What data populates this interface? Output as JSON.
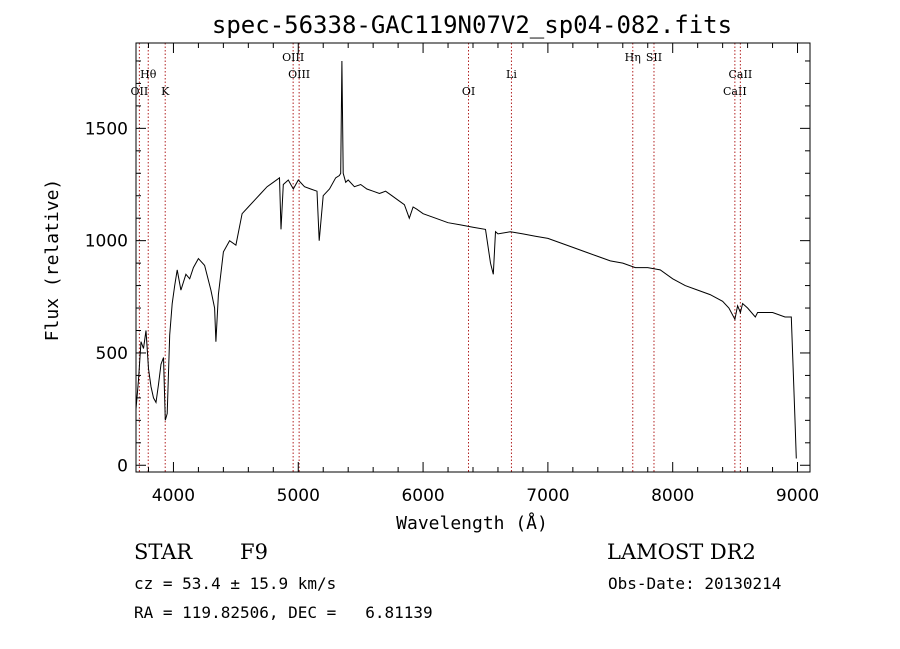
{
  "chart_data": {
    "type": "line",
    "title": "spec-56338-GAC119N07V2_sp04-082.fits",
    "xlabel": "Wavelength (Å)",
    "ylabel": "Flux (relative)",
    "xlim": [
      3700,
      9100
    ],
    "ylim": [
      -30,
      1880
    ],
    "xticks": [
      4000,
      5000,
      6000,
      7000,
      8000,
      9000
    ],
    "yticks": [
      0,
      500,
      1000,
      1500
    ],
    "series": [
      {
        "name": "flux",
        "x": [
          3700,
          3720,
          3740,
          3760,
          3780,
          3800,
          3820,
          3840,
          3860,
          3880,
          3900,
          3920,
          3935,
          3950,
          3970,
          3990,
          4010,
          4030,
          4060,
          4100,
          4130,
          4160,
          4200,
          4250,
          4300,
          4330,
          4340,
          4360,
          4400,
          4450,
          4500,
          4550,
          4600,
          4650,
          4700,
          4750,
          4800,
          4850,
          4862,
          4880,
          4920,
          4960,
          5000,
          5050,
          5100,
          5150,
          5168,
          5200,
          5250,
          5300,
          5330,
          5340,
          5350,
          5360,
          5380,
          5400,
          5450,
          5500,
          5550,
          5600,
          5650,
          5700,
          5750,
          5800,
          5850,
          5890,
          5920,
          5950,
          6000,
          6100,
          6200,
          6300,
          6400,
          6500,
          6540,
          6563,
          6580,
          6600,
          6700,
          6800,
          6900,
          7000,
          7100,
          7200,
          7300,
          7400,
          7500,
          7600,
          7700,
          7800,
          7900,
          8000,
          8100,
          8200,
          8300,
          8400,
          8450,
          8498,
          8520,
          8542,
          8560,
          8600,
          8662,
          8680,
          8700,
          8800,
          8900,
          8950,
          8980,
          8990
        ],
        "values": [
          250,
          380,
          550,
          520,
          600,
          430,
          350,
          300,
          280,
          360,
          450,
          480,
          200,
          230,
          580,
          720,
          800,
          870,
          780,
          850,
          830,
          880,
          920,
          890,
          780,
          700,
          550,
          760,
          950,
          1000,
          980,
          1120,
          1150,
          1180,
          1210,
          1240,
          1260,
          1280,
          1050,
          1250,
          1270,
          1230,
          1270,
          1240,
          1230,
          1220,
          1000,
          1200,
          1230,
          1280,
          1290,
          1300,
          1800,
          1300,
          1260,
          1270,
          1240,
          1250,
          1230,
          1220,
          1210,
          1220,
          1200,
          1180,
          1160,
          1100,
          1150,
          1140,
          1120,
          1100,
          1080,
          1070,
          1060,
          1050,
          900,
          850,
          1040,
          1030,
          1040,
          1030,
          1020,
          1010,
          990,
          970,
          950,
          930,
          910,
          900,
          880,
          880,
          870,
          830,
          800,
          780,
          760,
          730,
          700,
          650,
          710,
          680,
          720,
          700,
          660,
          680,
          680,
          680,
          660,
          660,
          200,
          30
        ]
      }
    ],
    "line_labels": [
      {
        "name": "OII",
        "x": 3727,
        "row": 3
      },
      {
        "name": "Hθ",
        "x": 3798,
        "row": 2
      },
      {
        "name": "K",
        "x": 3934,
        "row": 3
      },
      {
        "name": "OIII",
        "x": 4959,
        "row": 1
      },
      {
        "name": "OIII",
        "x": 5007,
        "row": 2
      },
      {
        "name": "OI",
        "x": 6364,
        "row": 3
      },
      {
        "name": "Li",
        "x": 6708,
        "row": 2
      },
      {
        "name": "Hη",
        "x": 7680,
        "row": 1
      },
      {
        "name": "SII",
        "x": 7850,
        "row": 1
      },
      {
        "name": "CaII",
        "x": 8498,
        "row": 3
      },
      {
        "name": "CaII",
        "x": 8542,
        "row": 2
      }
    ]
  },
  "info": {
    "class_label": "STAR",
    "subclass": "F9",
    "survey": "LAMOST DR2",
    "cz": "cz = 53.4 ± 15.9 km/s",
    "obs_date": "Obs-Date: 20130214",
    "coords": "RA = 119.82506, DEC =   6.81139"
  },
  "colors": {
    "line_marker": "#b22222",
    "spectrum": "#000000"
  }
}
